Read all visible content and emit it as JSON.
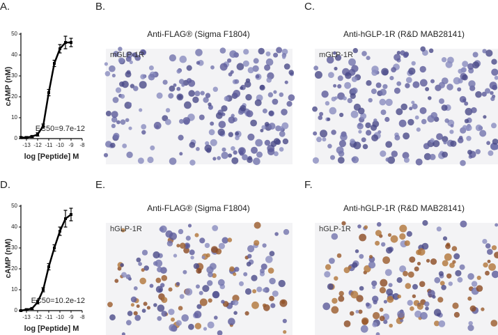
{
  "panel_labels": [
    "A.",
    "B.",
    "C.",
    "D.",
    "E.",
    "F."
  ],
  "images": [
    {
      "title": "Anti-FLAG® (Sigma F1804)",
      "tag": "mGLP-1R"
    },
    {
      "title": "Anti-hGLP-1R (R&D MAB28141)",
      "tag": "mGLP-1R"
    },
    {
      "title": "Anti-FLAG® (Sigma F1804)",
      "tag": "hGLP-1R"
    },
    {
      "title": "Anti-hGLP-1R (R&D MAB28141)",
      "tag": "hGLP-1R"
    }
  ],
  "chart_data": [
    {
      "type": "line",
      "y_label": "cAMP (nM)",
      "x_label": "log [Peptide] M",
      "annotation": "EC50=9.7e-12",
      "x": [
        -13.5,
        -13,
        -12.5,
        -12,
        -11.5,
        -11,
        -10.5,
        -10,
        -9.5,
        -9
      ],
      "series": [
        {
          "color": "#000000",
          "values": [
            0.5,
            0.5,
            1,
            2,
            6,
            22,
            36,
            43,
            46,
            46
          ],
          "errors": [
            0.5,
            0.5,
            0.5,
            0.8,
            1,
            1.5,
            1.5,
            2,
            3,
            2
          ]
        }
      ],
      "xlim": [
        -13.5,
        -8
      ],
      "ylim": [
        0,
        50
      ],
      "xticks": [
        -13,
        -12,
        -11,
        -10,
        -9,
        -8
      ],
      "yticks": [
        0,
        10,
        20,
        30,
        40,
        50
      ]
    },
    {
      "type": "line",
      "y_label": "cAMP (nM)",
      "x_label": "log [Peptide] M",
      "annotation": "EC50=10.2e-12",
      "x": [
        -13.5,
        -13,
        -12.5,
        -12,
        -11.5,
        -11,
        -10.5,
        -10,
        -9.5,
        -9
      ],
      "series": [
        {
          "color": "#000000",
          "values": [
            0,
            0.5,
            1,
            4,
            10,
            21,
            30,
            38,
            44,
            46
          ],
          "errors": [
            0.3,
            0.4,
            0.5,
            0.8,
            1,
            1.5,
            1.5,
            2,
            4,
            3
          ]
        }
      ],
      "xlim": [
        -13.5,
        -8
      ],
      "ylim": [
        0,
        50
      ],
      "xticks": [
        -13,
        -12,
        -11,
        -10,
        -9,
        -8
      ],
      "yticks": [
        0,
        10,
        20,
        30,
        40,
        50
      ]
    }
  ]
}
